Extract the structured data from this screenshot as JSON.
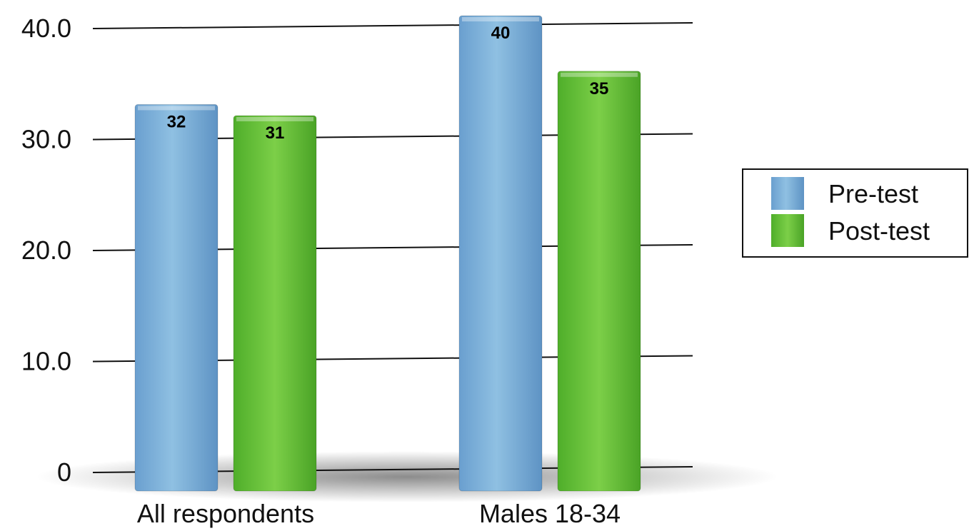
{
  "chart_data": {
    "type": "bar",
    "categories": [
      "All respondents",
      "Males 18-34"
    ],
    "series": [
      {
        "name": "Pre-test",
        "values": [
          32,
          40
        ],
        "labels": [
          "32",
          "40"
        ],
        "color": "#7fb0d8"
      },
      {
        "name": "Post-test",
        "values": [
          31,
          35
        ],
        "labels": [
          "31",
          "35"
        ],
        "color": "#6cc33a"
      }
    ],
    "y_ticks": [
      {
        "value": 0,
        "label": "0"
      },
      {
        "value": 10,
        "label": "10.0"
      },
      {
        "value": 20,
        "label": "20.0"
      },
      {
        "value": 30,
        "label": "30.0"
      },
      {
        "value": 40,
        "label": "40.0"
      }
    ],
    "ylim": [
      0,
      40
    ],
    "grid": true,
    "legend_position": "right"
  }
}
